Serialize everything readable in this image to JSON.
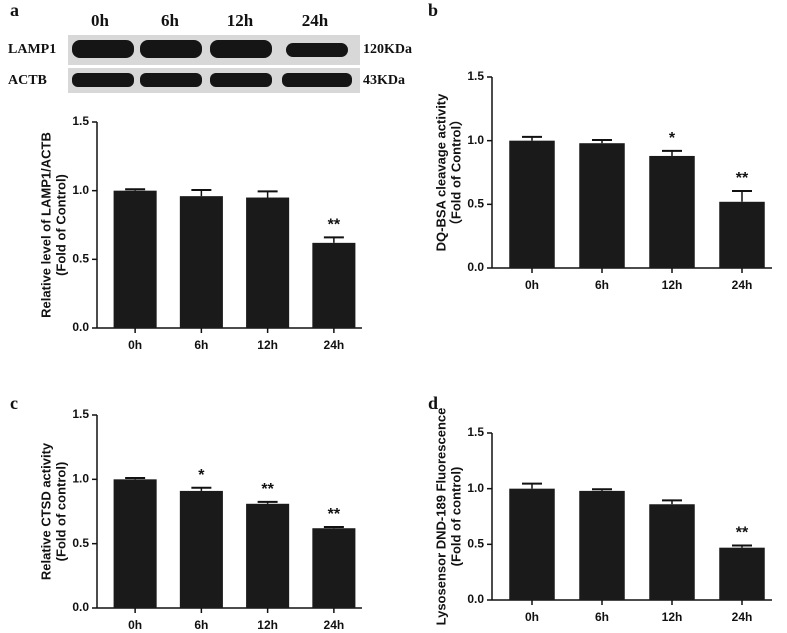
{
  "blot": {
    "panel_label": "a",
    "lanes": [
      "0h",
      "6h",
      "12h",
      "24h"
    ],
    "rows": [
      {
        "name": "LAMP1",
        "size": "120KDa"
      },
      {
        "name": "ACTB",
        "size": "43KDa"
      }
    ]
  },
  "chart_data": [
    {
      "type": "bar",
      "panel_label": "a",
      "ylabel": [
        "Relative level of LAMP1/ACTB",
        "(Fold of Control)"
      ],
      "categories": [
        "0h",
        "6h",
        "12h",
        "24h"
      ],
      "values": [
        1.0,
        0.96,
        0.95,
        0.62
      ],
      "errors": [
        0.01,
        0.045,
        0.045,
        0.04
      ],
      "annotations": [
        null,
        null,
        null,
        "**"
      ],
      "color": "#1a1a1a",
      "ylim": [
        0,
        1.5
      ],
      "yticks": [
        {
          "value": 0,
          "label": "0.0"
        },
        {
          "value": 0.5,
          "label": "0.5"
        },
        {
          "value": 1,
          "label": "1.0"
        },
        {
          "value": 1.5,
          "label": "1.5"
        }
      ]
    },
    {
      "type": "bar",
      "panel_label": "b",
      "ylabel": [
        "DQ-BSA cleavage activity",
        "（Fold of Control）"
      ],
      "categories": [
        "0h",
        "6h",
        "12h",
        "24h"
      ],
      "values": [
        1.0,
        0.98,
        0.88,
        0.52
      ],
      "errors": [
        0.03,
        0.025,
        0.04,
        0.085
      ],
      "annotations": [
        null,
        null,
        "*",
        "**"
      ],
      "color": "#1a1a1a",
      "ylim": [
        0,
        1.5
      ],
      "yticks": [
        {
          "value": 0,
          "label": "0.0"
        },
        {
          "value": 0.5,
          "label": "0.5"
        },
        {
          "value": 1,
          "label": "1.0"
        },
        {
          "value": 1.5,
          "label": "1.5"
        }
      ]
    },
    {
      "type": "bar",
      "panel_label": "c",
      "ylabel": [
        "Relative CTSD activity",
        "(Fold of control)"
      ],
      "categories": [
        "0h",
        "6h",
        "12h",
        "24h"
      ],
      "values": [
        1.0,
        0.91,
        0.81,
        0.62
      ],
      "errors": [
        0.01,
        0.025,
        0.015,
        0.01
      ],
      "annotations": [
        null,
        "*",
        "**",
        "**"
      ],
      "color": "#1a1a1a",
      "ylim": [
        0,
        1.5
      ],
      "yticks": [
        {
          "value": 0,
          "label": "0.0"
        },
        {
          "value": 0.5,
          "label": "0.5"
        },
        {
          "value": 1,
          "label": "1.0"
        },
        {
          "value": 1.5,
          "label": "1.5"
        }
      ]
    },
    {
      "type": "bar",
      "panel_label": "d",
      "ylabel": [
        "Lysosensor DND-189 Fluorescence",
        "(Fold of control)"
      ],
      "categories": [
        "0h",
        "6h",
        "12h",
        "24h"
      ],
      "values": [
        1.0,
        0.98,
        0.86,
        0.47
      ],
      "errors": [
        0.045,
        0.015,
        0.035,
        0.02
      ],
      "annotations": [
        null,
        null,
        null,
        "**"
      ],
      "color": "#1a1a1a",
      "ylim": [
        0,
        1.5
      ],
      "yticks": [
        {
          "value": 0,
          "label": "0.0"
        },
        {
          "value": 0.5,
          "label": "0.5"
        },
        {
          "value": 1,
          "label": "1.0"
        },
        {
          "value": 1.5,
          "label": "1.5"
        }
      ]
    }
  ]
}
